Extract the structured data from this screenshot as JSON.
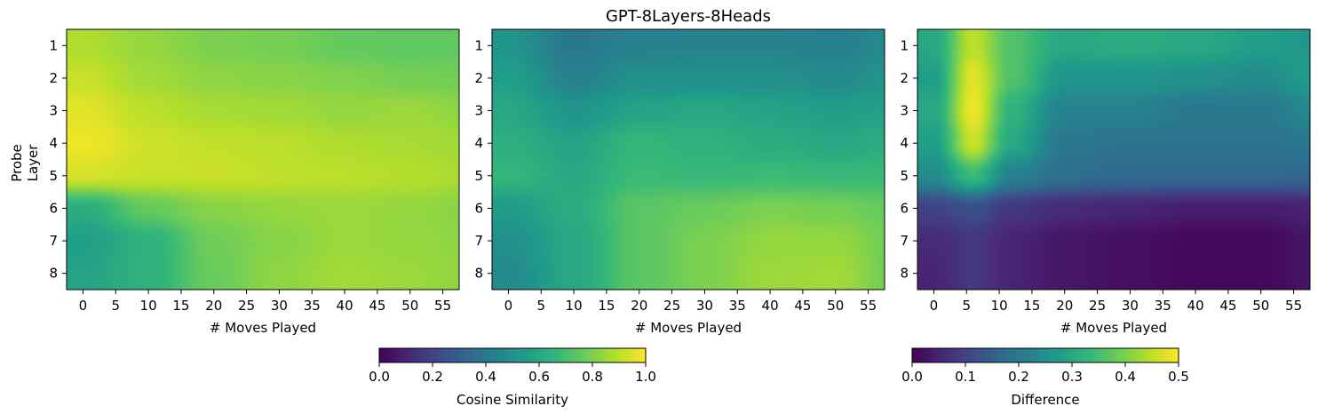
{
  "title": "GPT-8Layers-8Heads",
  "colormap": "viridis",
  "chart_data": [
    {
      "type": "heatmap",
      "panel": "left",
      "title": "",
      "xlabel": "# Moves Played",
      "ylabel": "Probe\nLayer",
      "ylabel_lines": [
        "Probe",
        "Layer"
      ],
      "x_ticks": [
        0,
        5,
        10,
        15,
        20,
        25,
        30,
        35,
        40,
        45,
        50,
        55
      ],
      "y_ticks": [
        1,
        2,
        3,
        4,
        5,
        6,
        7,
        8
      ],
      "xlim": [
        -2.5,
        57.5
      ],
      "ylim": [
        8.5,
        0.5
      ],
      "x_grid": [
        0,
        10,
        20,
        30,
        40,
        50,
        59
      ],
      "y_grid": [
        1,
        2,
        3,
        4,
        5,
        6,
        7,
        8
      ],
      "values": [
        [
          0.88,
          0.84,
          0.8,
          0.79,
          0.76,
          0.75,
          0.75
        ],
        [
          0.92,
          0.86,
          0.83,
          0.82,
          0.81,
          0.79,
          0.78
        ],
        [
          0.96,
          0.9,
          0.87,
          0.86,
          0.84,
          0.85,
          0.83
        ],
        [
          0.98,
          0.93,
          0.91,
          0.9,
          0.88,
          0.87,
          0.86
        ],
        [
          0.94,
          0.92,
          0.92,
          0.91,
          0.9,
          0.89,
          0.87
        ],
        [
          0.62,
          0.76,
          0.82,
          0.84,
          0.85,
          0.84,
          0.82
        ],
        [
          0.56,
          0.64,
          0.78,
          0.82,
          0.85,
          0.84,
          0.83
        ],
        [
          0.58,
          0.64,
          0.77,
          0.83,
          0.86,
          0.85,
          0.83
        ]
      ],
      "vmin": 0.0,
      "vmax": 1.0
    },
    {
      "type": "heatmap",
      "panel": "middle",
      "title": "GPT-8Layers-8Heads",
      "xlabel": "# Moves Played",
      "ylabel": "",
      "x_ticks": [
        0,
        5,
        10,
        15,
        20,
        25,
        30,
        35,
        40,
        45,
        50,
        55
      ],
      "y_ticks": [
        1,
        2,
        3,
        4,
        5,
        6,
        7,
        8
      ],
      "xlim": [
        -2.5,
        57.5
      ],
      "ylim": [
        8.5,
        0.5
      ],
      "x_grid": [
        0,
        10,
        20,
        30,
        40,
        50,
        59
      ],
      "y_grid": [
        1,
        2,
        3,
        4,
        5,
        6,
        7,
        8
      ],
      "values": [
        [
          0.52,
          0.4,
          0.44,
          0.45,
          0.45,
          0.43,
          0.48
        ],
        [
          0.56,
          0.44,
          0.5,
          0.5,
          0.5,
          0.48,
          0.52
        ],
        [
          0.6,
          0.52,
          0.58,
          0.6,
          0.58,
          0.56,
          0.57
        ],
        [
          0.63,
          0.58,
          0.66,
          0.64,
          0.62,
          0.6,
          0.62
        ],
        [
          0.66,
          0.6,
          0.68,
          0.67,
          0.68,
          0.67,
          0.68
        ],
        [
          0.55,
          0.62,
          0.74,
          0.77,
          0.8,
          0.79,
          0.76
        ],
        [
          0.5,
          0.6,
          0.74,
          0.8,
          0.84,
          0.84,
          0.78
        ],
        [
          0.48,
          0.6,
          0.74,
          0.8,
          0.85,
          0.86,
          0.78
        ]
      ],
      "vmin": 0.0,
      "vmax": 1.0
    },
    {
      "type": "heatmap",
      "panel": "right",
      "title": "",
      "xlabel": "# Moves Played",
      "ylabel": "",
      "x_ticks": [
        0,
        5,
        10,
        15,
        20,
        25,
        30,
        35,
        40,
        45,
        50,
        55
      ],
      "y_ticks": [
        1,
        2,
        3,
        4,
        5,
        6,
        7,
        8
      ],
      "xlim": [
        -2.5,
        57.5
      ],
      "ylim": [
        8.5,
        0.5
      ],
      "x_grid": [
        0,
        6,
        12,
        20,
        30,
        40,
        50,
        59
      ],
      "y_grid": [
        1,
        2,
        3,
        4,
        5,
        6,
        7,
        8
      ],
      "values": [
        [
          0.3,
          0.45,
          0.36,
          0.3,
          0.31,
          0.3,
          0.28,
          0.26
        ],
        [
          0.28,
          0.48,
          0.36,
          0.26,
          0.26,
          0.25,
          0.24,
          0.28
        ],
        [
          0.3,
          0.49,
          0.32,
          0.22,
          0.22,
          0.2,
          0.2,
          0.24
        ],
        [
          0.28,
          0.46,
          0.3,
          0.2,
          0.19,
          0.19,
          0.19,
          0.2
        ],
        [
          0.24,
          0.34,
          0.22,
          0.18,
          0.17,
          0.17,
          0.17,
          0.16
        ],
        [
          0.1,
          0.12,
          0.08,
          0.06,
          0.05,
          0.04,
          0.04,
          0.05
        ],
        [
          0.06,
          0.08,
          0.05,
          0.03,
          0.02,
          0.01,
          0.01,
          0.03
        ],
        [
          0.05,
          0.08,
          0.05,
          0.03,
          0.02,
          0.01,
          0.01,
          0.03
        ]
      ],
      "vmin": 0.0,
      "vmax": 0.5
    }
  ],
  "colorbars": [
    {
      "label": "Cosine Similarity",
      "min": 0.0,
      "max": 1.0,
      "ticks": [
        "0.0",
        "0.2",
        "0.4",
        "0.6",
        "0.8",
        "1.0"
      ],
      "orientation": "horizontal"
    },
    {
      "label": "Difference",
      "min": 0.0,
      "max": 0.5,
      "ticks": [
        "0.0",
        "0.1",
        "0.2",
        "0.3",
        "0.4",
        "0.5"
      ],
      "orientation": "horizontal"
    }
  ]
}
